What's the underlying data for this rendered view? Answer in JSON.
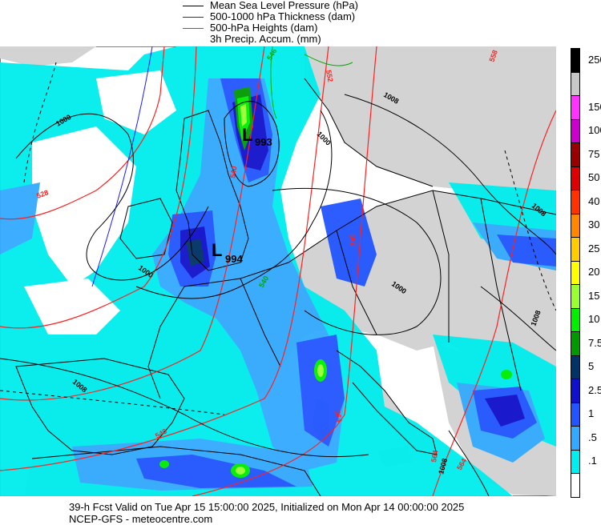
{
  "legend": {
    "items": [
      {
        "label": "Mean Sea Level Pressure (hPa)",
        "color": "#000000"
      },
      {
        "label": "500-1000 hPa Thickness (dam)",
        "color": "#1a1aff"
      },
      {
        "label": "500-hPa Heights (dam)",
        "color": "#ff2020"
      },
      {
        "label": "3h Precip. Accum. (mm)",
        "color": ""
      }
    ]
  },
  "colorbar": {
    "levels": [
      {
        "label": "250",
        "color": "#000000"
      },
      {
        "label": "",
        "color": "#c8c8c8"
      },
      {
        "label": "150",
        "color": "#ff33ff"
      },
      {
        "label": "100",
        "color": "#cc00cc"
      },
      {
        "label": "75",
        "color": "#990000"
      },
      {
        "label": "50",
        "color": "#dd0000"
      },
      {
        "label": "40",
        "color": "#ff3300"
      },
      {
        "label": "30",
        "color": "#ff8800"
      },
      {
        "label": "25",
        "color": "#ffcc00"
      },
      {
        "label": "20",
        "color": "#ffff00"
      },
      {
        "label": "15",
        "color": "#99ff33"
      },
      {
        "label": "10",
        "color": "#00ee00"
      },
      {
        "label": "7.5",
        "color": "#009900"
      },
      {
        "label": "5",
        "color": "#003366"
      },
      {
        "label": "2.5",
        "color": "#1111cc"
      },
      {
        "label": "1",
        "color": "#2255ff"
      },
      {
        "label": ".5",
        "color": "#33aaff"
      },
      {
        "label": ".1",
        "color": "#00eeee"
      },
      {
        "label": "",
        "color": "#ffffff"
      }
    ]
  },
  "map": {
    "lows": [
      {
        "letter": "L",
        "value": "993"
      },
      {
        "letter": "L",
        "value": "994"
      }
    ],
    "isobar_labels": [
      "1000",
      "1000",
      "1000",
      "1008",
      "1000",
      "1008",
      "1008",
      "1008",
      "1008"
    ],
    "height_labels": [
      "528",
      "540",
      "552",
      "552",
      "564",
      "540",
      "558",
      "564",
      "564"
    ],
    "thickness_labels": [
      "546",
      "540"
    ],
    "colors": {
      "land": "#d3d3d3",
      "sea": "#ffffff",
      "precip_light": "#00eeee",
      "precip_mid": "#33aaff",
      "precip_1": "#2255ff",
      "precip_2": "#1111cc",
      "precip_5": "#003366",
      "precip_green": "#00cc00",
      "precip_lime": "#99ff33"
    }
  },
  "footer": {
    "line1": "39-h Fcst Valid on Tue Apr 15 15:00:00 2025, Initialized on Mon Apr 14 00:00:00 2025",
    "line2": "NCEP-GFS  - meteocentre.com"
  }
}
